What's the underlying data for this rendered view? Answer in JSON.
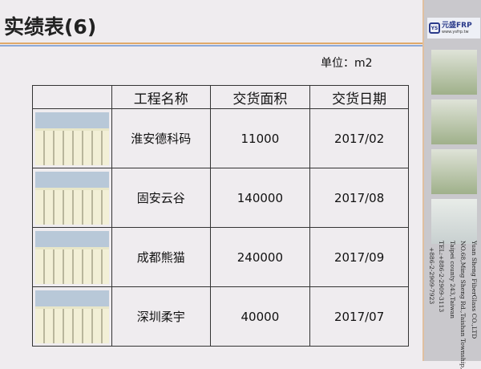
{
  "title": "实绩表(6)",
  "unit": "单位：m2",
  "headers": [
    "",
    "工程名称",
    "交货面积",
    "交货日期"
  ],
  "rows": [
    {
      "name": "淮安德科码",
      "area": "11000",
      "date": "2017/02"
    },
    {
      "name": "固安云谷",
      "area": "140000",
      "date": "2017/08"
    },
    {
      "name": "成都熊猫",
      "area": "240000",
      "date": "2017/09"
    },
    {
      "name": "深圳柔宇",
      "area": "40000",
      "date": "2017/07"
    }
  ],
  "logo": {
    "mark": "YS",
    "brand": "元盛FRP",
    "url": "www.ysfrp.tw"
  },
  "address": [
    "Yuan Sheng FiberGlass CO.,LTD",
    "NO.68,Ming Sheng Rd.,Taishan Township,",
    "Taipei county 243,Taiwan",
    "TEL:+886-2-2909-3113",
    "+886-2-2909-7923"
  ]
}
